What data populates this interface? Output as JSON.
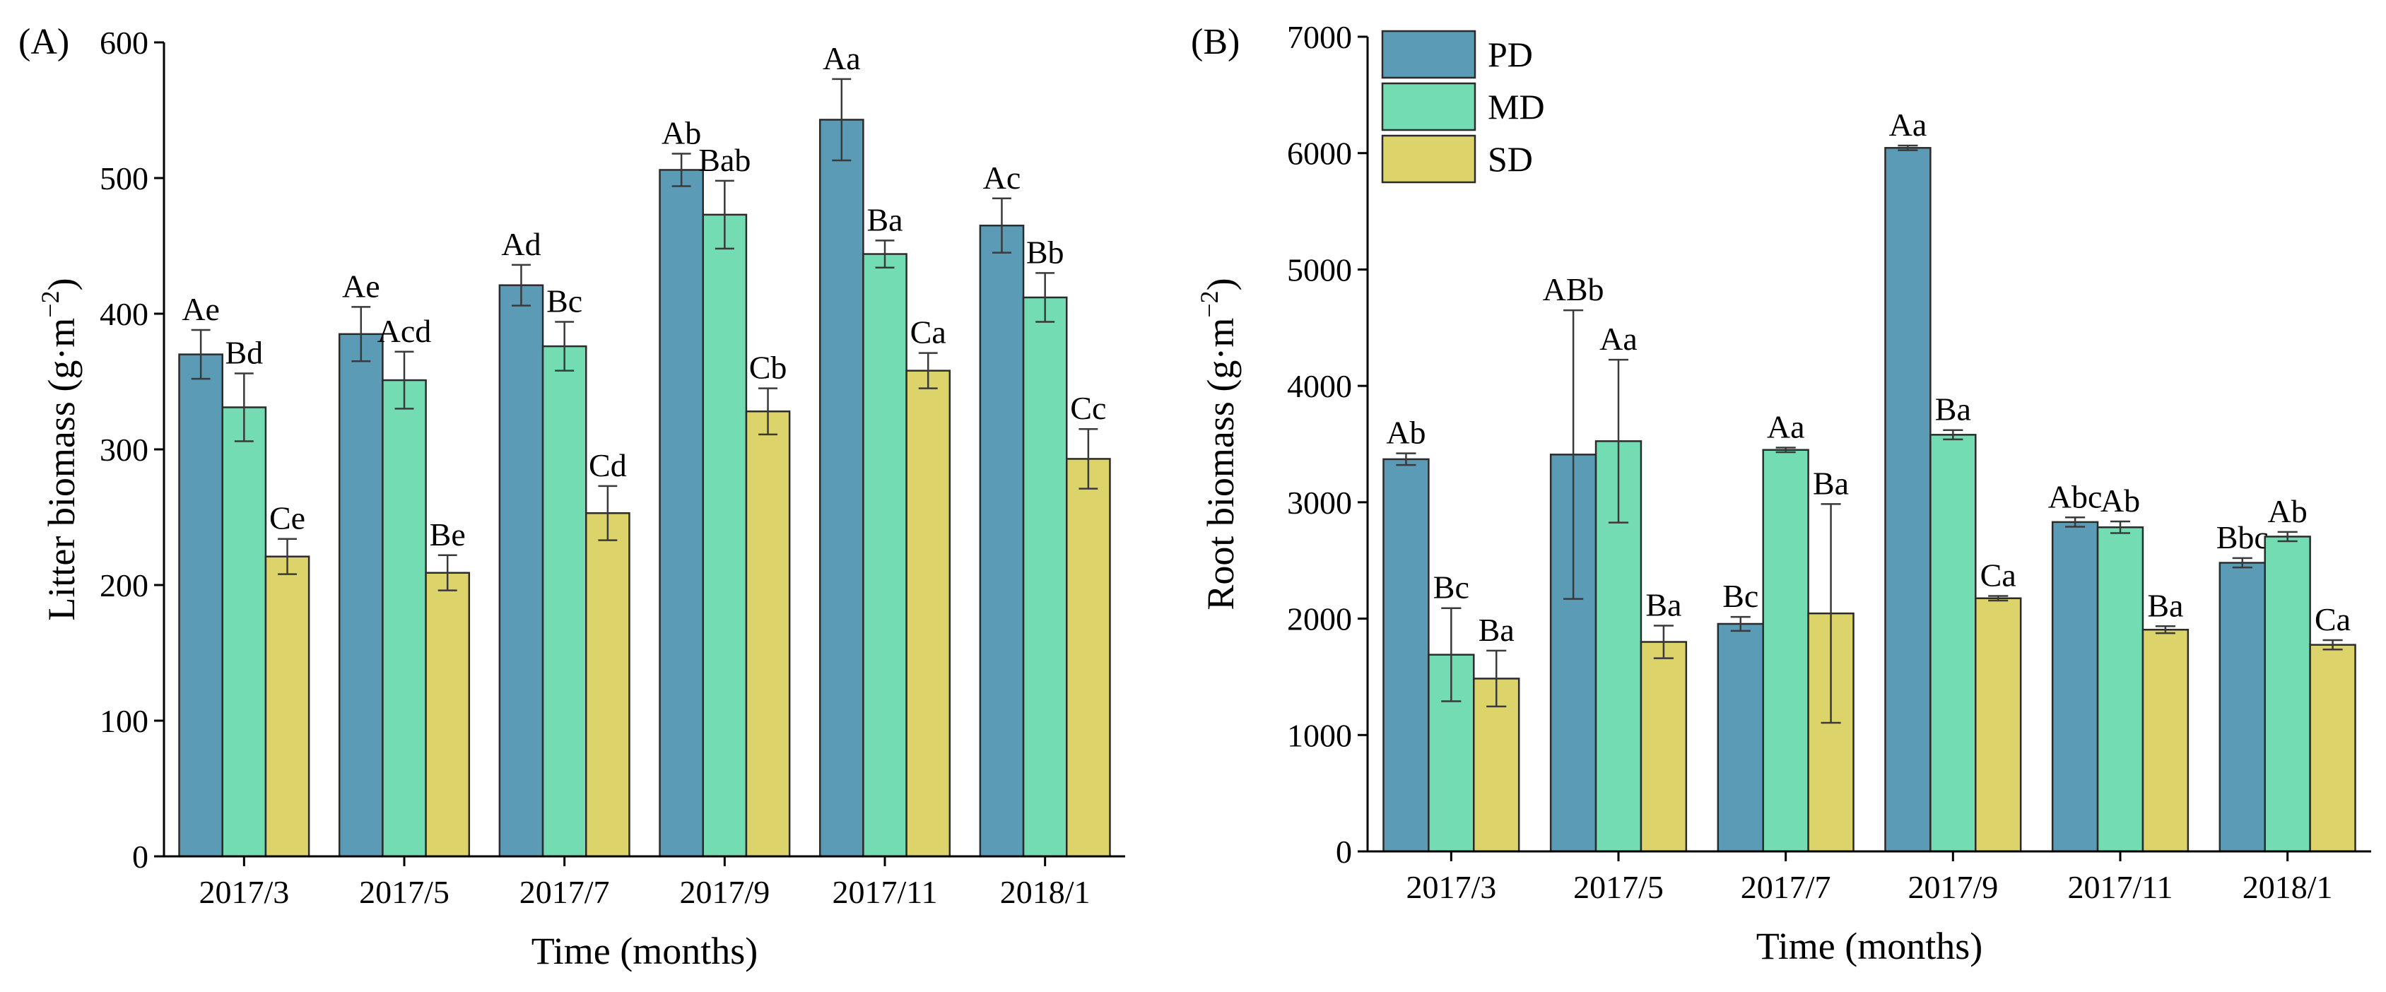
{
  "colors": {
    "PD": "#5b9bb5",
    "MD": "#73dcb3",
    "SD": "#dcd36a"
  },
  "chart_data": [
    {
      "type": "bar",
      "panel": "(A)",
      "xlabel": "Time (months)",
      "ylabel": "Litter biomass (g·m",
      "ylabel_sup": "−2",
      "ylabel_close": ")",
      "ylim": [
        0,
        600
      ],
      "yticks": [
        0,
        100,
        200,
        300,
        400,
        500,
        600
      ],
      "categories": [
        "2017/3",
        "2017/5",
        "2017/7",
        "2017/9",
        "2017/11",
        "2018/1"
      ],
      "legend": false,
      "series": [
        {
          "name": "PD",
          "values": [
            370,
            385,
            421,
            506,
            543,
            465
          ],
          "errors": [
            18,
            20,
            15,
            12,
            30,
            20
          ],
          "labels": [
            "Ae",
            "Ae",
            "Ad",
            "Ab",
            "Aa",
            "Ac"
          ]
        },
        {
          "name": "MD",
          "values": [
            331,
            351,
            376,
            473,
            444,
            412
          ],
          "errors": [
            25,
            21,
            18,
            25,
            10,
            18
          ],
          "labels": [
            "Bd",
            "Acd",
            "Bc",
            "Bab",
            "Ba",
            "Bb"
          ]
        },
        {
          "name": "SD",
          "values": [
            221,
            209,
            253,
            328,
            358,
            293
          ],
          "errors": [
            13,
            13,
            20,
            17,
            13,
            22
          ],
          "labels": [
            "Ce",
            "Be",
            "Cd",
            "Cb",
            "Ca",
            "Cc"
          ]
        }
      ]
    },
    {
      "type": "bar",
      "panel": "(B)",
      "xlabel": "Time (months)",
      "ylabel": "Root biomass (g·m",
      "ylabel_sup": "−2",
      "ylabel_close": ")",
      "ylim": [
        0,
        7000
      ],
      "yticks": [
        0,
        1000,
        2000,
        3000,
        4000,
        5000,
        6000,
        7000
      ],
      "categories": [
        "2017/3",
        "2017/5",
        "2017/7",
        "2017/9",
        "2017/11",
        "2018/1"
      ],
      "legend": true,
      "legend_position": "top-left",
      "series": [
        {
          "name": "PD",
          "values": [
            3370,
            3410,
            1955,
            6045,
            2830,
            2480
          ],
          "errors": [
            50,
            1240,
            60,
            20,
            40,
            40
          ],
          "labels": [
            "Ab",
            "ABb",
            "Bc",
            "Aa",
            "Abc",
            "Bbc"
          ]
        },
        {
          "name": "MD",
          "values": [
            1690,
            3525,
            3450,
            3580,
            2785,
            2705
          ],
          "errors": [
            400,
            700,
            20,
            40,
            50,
            40
          ],
          "labels": [
            "Bc",
            "Aa",
            "Aa",
            "Ba",
            "Ab",
            "Ab"
          ]
        },
        {
          "name": "SD",
          "values": [
            1485,
            1800,
            2045,
            2175,
            1905,
            1775
          ],
          "errors": [
            240,
            140,
            940,
            20,
            30,
            40
          ],
          "labels": [
            "Ba",
            "Ba",
            "Ba",
            "Ca",
            "Ba",
            "Ca"
          ]
        }
      ]
    }
  ]
}
